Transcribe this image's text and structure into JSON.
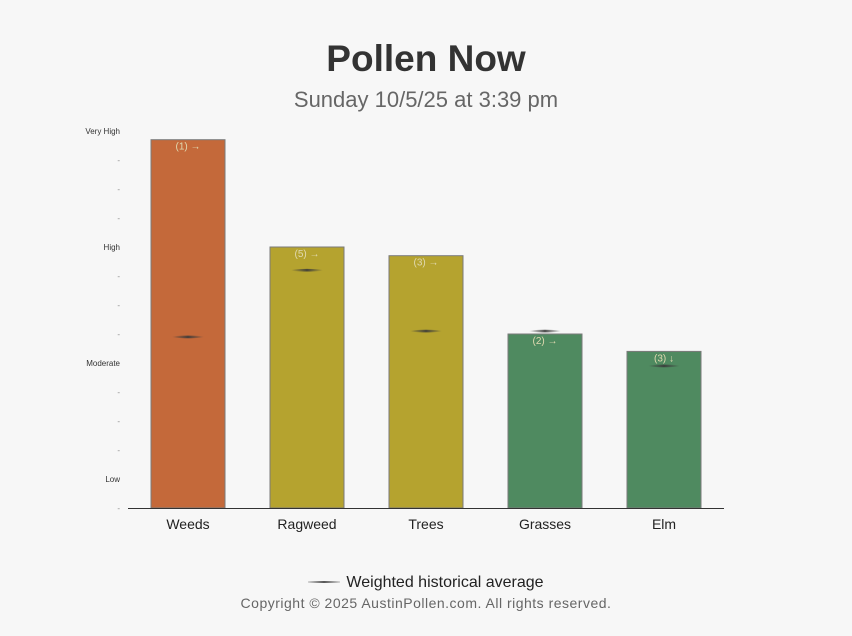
{
  "header": {
    "title": "Pollen Now",
    "subtitle": "Sunday 10/5/25 at 3:39 pm"
  },
  "legend": {
    "label": "Weighted historical average"
  },
  "footer": {
    "copyright": "Copyright © 2025 AustinPollen.com.  All rights reserved."
  },
  "colors": {
    "high": "#c4693a",
    "moderate": "#b5a32f",
    "low": "#4f8a60",
    "annotation": "#e0d9b0",
    "axis": "#333333"
  },
  "chart_data": {
    "type": "bar",
    "title": "",
    "xlabel": "",
    "ylabel": "",
    "ylim": [
      0,
      13
    ],
    "y_level_labels": [
      {
        "value": 1,
        "label": "Low"
      },
      {
        "value": 5,
        "label": "Moderate"
      },
      {
        "value": 9,
        "label": "High"
      },
      {
        "value": 13,
        "label": "Very High"
      }
    ],
    "y_minor_ticks": [
      0,
      2,
      3,
      4,
      6,
      7,
      8,
      10,
      11,
      12
    ],
    "y_minor_tick_label": "-",
    "categories": [
      "Weeds",
      "Ragweed",
      "Trees",
      "Grasses",
      "Elm"
    ],
    "values": [
      12.7,
      9.0,
      8.7,
      6.0,
      5.4
    ],
    "historical_average": [
      5.9,
      8.2,
      6.1,
      6.1,
      4.9
    ],
    "annotations": [
      "(1) →",
      "(5) →",
      "(3) →",
      "(2) →",
      "(3) ↓"
    ],
    "bar_colors": [
      "#c4693a",
      "#b5a32f",
      "#b5a32f",
      "#4f8a60",
      "#4f8a60"
    ],
    "grid": false
  }
}
